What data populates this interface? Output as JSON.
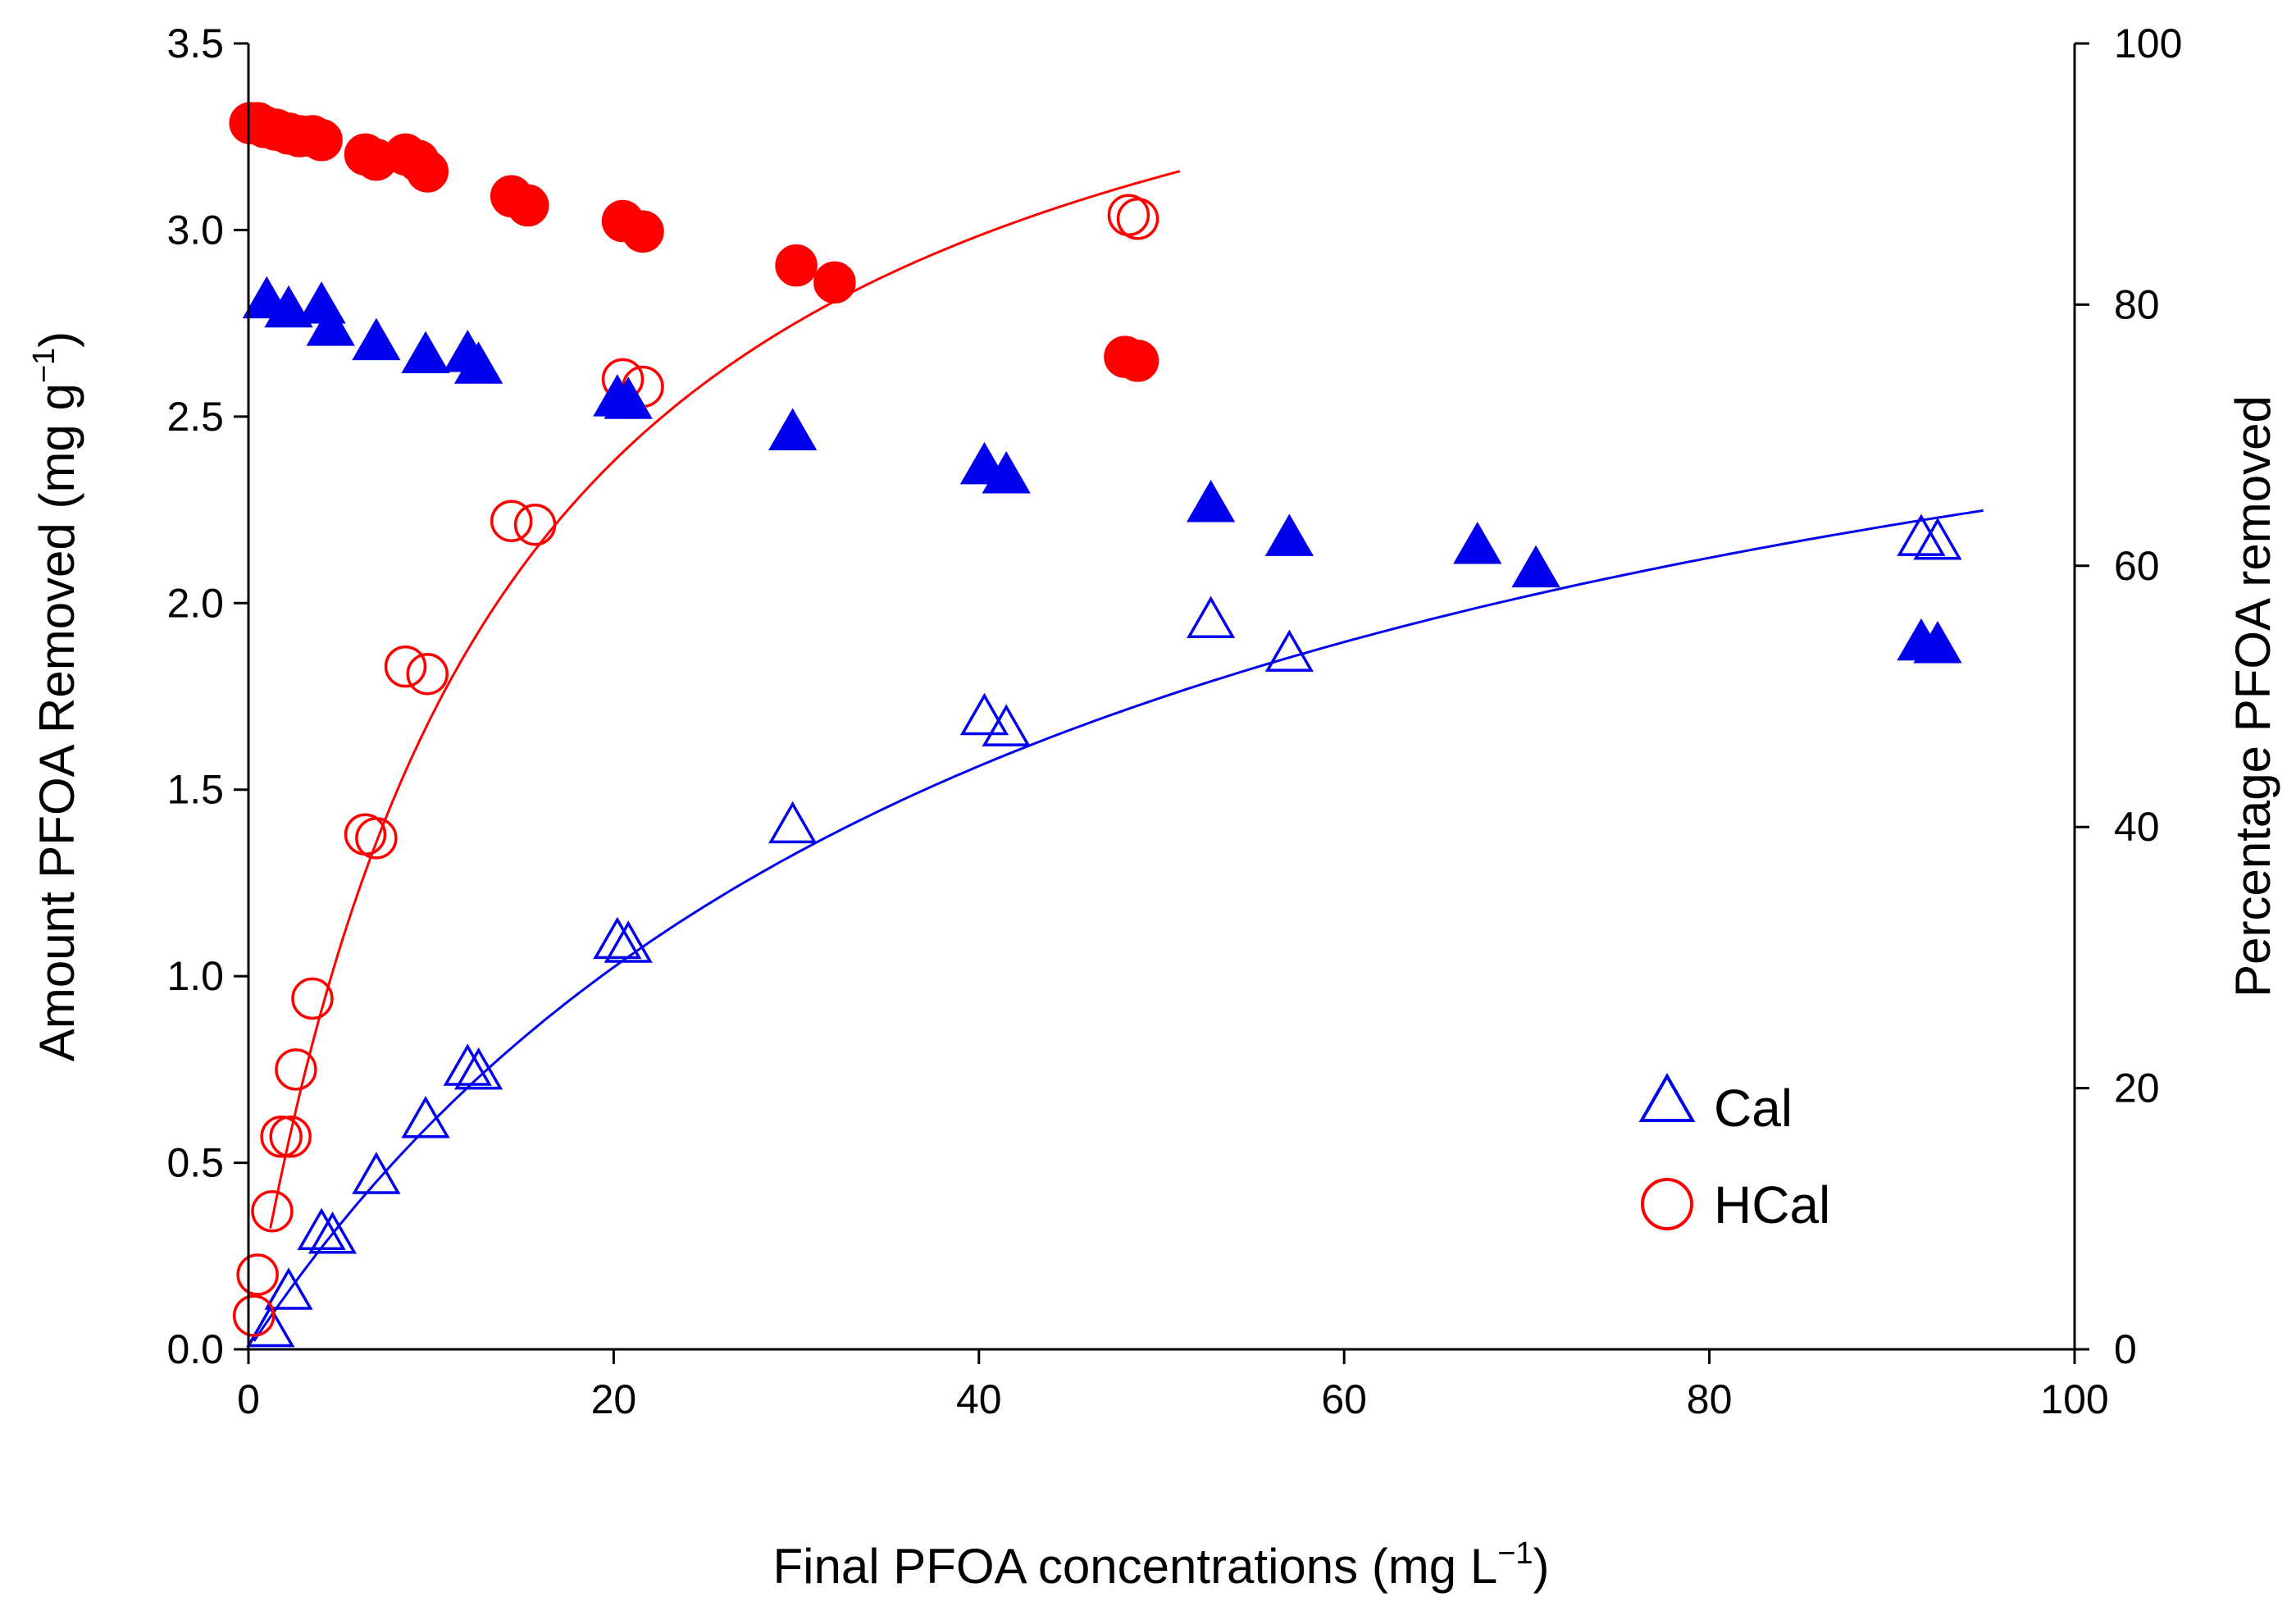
{
  "chart_data": {
    "type": "scatter",
    "xlabel": "Final PFOA concentrations (mg L",
    "xlabel_sup": "−1",
    "xlabel_end": ")",
    "ylabel": "Amount PFOA Removed (mg g",
    "ylabel_sup": "−1",
    "ylabel_end": ")",
    "y2label": "Percentage PFOA removed",
    "xlim": [
      0,
      100
    ],
    "ylim": [
      0,
      3.5
    ],
    "y2lim": [
      0,
      100
    ],
    "xticks": [
      "0",
      "20",
      "40",
      "60",
      "80",
      "100"
    ],
    "yticks": [
      "0.0",
      "0.5",
      "1.0",
      "1.5",
      "2.0",
      "2.5",
      "3.0",
      "3.5"
    ],
    "y2ticks": [
      "0",
      "20",
      "40",
      "60",
      "80",
      "100"
    ],
    "legend": {
      "position": "bottom-right",
      "entries": [
        "Cal",
        "HCal"
      ]
    },
    "colors": {
      "cal": "#0000ee",
      "hcal": "#ff0000",
      "axis": "#000000"
    },
    "series": [
      {
        "name": "Cal",
        "kind": "amount-removed",
        "axis": "left",
        "marker": "triangle-open",
        "color": "#0000ee",
        "points": [
          [
            1.2,
            0.05
          ],
          [
            2.2,
            0.15
          ],
          [
            4.0,
            0.31
          ],
          [
            4.6,
            0.3
          ],
          [
            7.0,
            0.46
          ],
          [
            9.7,
            0.61
          ],
          [
            12.0,
            0.75
          ],
          [
            12.6,
            0.74
          ],
          [
            20.2,
            1.09
          ],
          [
            20.8,
            1.08
          ],
          [
            29.8,
            1.4
          ],
          [
            40.3,
            1.69
          ],
          [
            41.5,
            1.66
          ],
          [
            52.7,
            1.95
          ],
          [
            57.0,
            1.86
          ],
          [
            91.6,
            2.17
          ],
          [
            92.5,
            2.16
          ]
        ]
      },
      {
        "name": "HCal",
        "kind": "amount-removed",
        "axis": "left",
        "marker": "circle-open",
        "color": "#ff0000",
        "points": [
          [
            0.3,
            0.09
          ],
          [
            0.5,
            0.2
          ],
          [
            1.3,
            0.37
          ],
          [
            1.8,
            0.57
          ],
          [
            2.3,
            0.57
          ],
          [
            2.6,
            0.75
          ],
          [
            3.5,
            0.94
          ],
          [
            6.4,
            1.38
          ],
          [
            7.0,
            1.37
          ],
          [
            8.6,
            1.83
          ],
          [
            9.8,
            1.81
          ],
          [
            14.4,
            2.22
          ],
          [
            15.7,
            2.21
          ],
          [
            20.5,
            2.6
          ],
          [
            21.6,
            2.58
          ],
          [
            48.2,
            3.04
          ],
          [
            48.7,
            3.03
          ]
        ]
      },
      {
        "name": "Cal % removed",
        "kind": "percent-removed",
        "axis": "right",
        "marker": "triangle-filled",
        "color": "#0000ee",
        "points": [
          [
            1.0,
            80.2
          ],
          [
            2.2,
            79.5
          ],
          [
            4.0,
            79.8
          ],
          [
            4.5,
            78.1
          ],
          [
            7.0,
            77.0
          ],
          [
            9.7,
            76.0
          ],
          [
            12.0,
            76.1
          ],
          [
            12.6,
            75.2
          ],
          [
            20.2,
            72.7
          ],
          [
            20.8,
            72.5
          ],
          [
            29.8,
            70.1
          ],
          [
            40.3,
            67.5
          ],
          [
            41.5,
            66.8
          ],
          [
            52.7,
            64.6
          ],
          [
            57.0,
            62.0
          ],
          [
            67.3,
            61.4
          ],
          [
            70.5,
            59.6
          ],
          [
            91.6,
            54.0
          ],
          [
            92.5,
            53.8
          ]
        ]
      },
      {
        "name": "HCal % removed",
        "kind": "percent-removed",
        "axis": "right",
        "marker": "circle-filled",
        "color": "#ff0000",
        "points": [
          [
            0.1,
            93.9
          ],
          [
            0.5,
            93.9
          ],
          [
            0.9,
            93.6
          ],
          [
            1.5,
            93.4
          ],
          [
            2.2,
            93.1
          ],
          [
            2.8,
            92.9
          ],
          [
            3.5,
            92.9
          ],
          [
            4.0,
            92.6
          ],
          [
            6.4,
            91.5
          ],
          [
            7.0,
            91.1
          ],
          [
            8.6,
            91.5
          ],
          [
            9.3,
            91.0
          ],
          [
            9.8,
            90.2
          ],
          [
            14.4,
            88.3
          ],
          [
            15.3,
            87.6
          ],
          [
            20.5,
            86.4
          ],
          [
            21.6,
            85.6
          ],
          [
            30.0,
            83.0
          ],
          [
            32.1,
            81.7
          ],
          [
            48.0,
            76.0
          ],
          [
            48.7,
            75.7
          ]
        ]
      }
    ],
    "fits": [
      {
        "name": "Cal fit",
        "color": "#0000ee",
        "qmax": 3.3,
        "k": 0.0225,
        "x_range": [
          0.3,
          95
        ]
      },
      {
        "name": "HCal fit",
        "color": "#ff0000",
        "qmax": 4.0,
        "k": 0.0735,
        "x_range": [
          1.2,
          51
        ]
      }
    ]
  }
}
